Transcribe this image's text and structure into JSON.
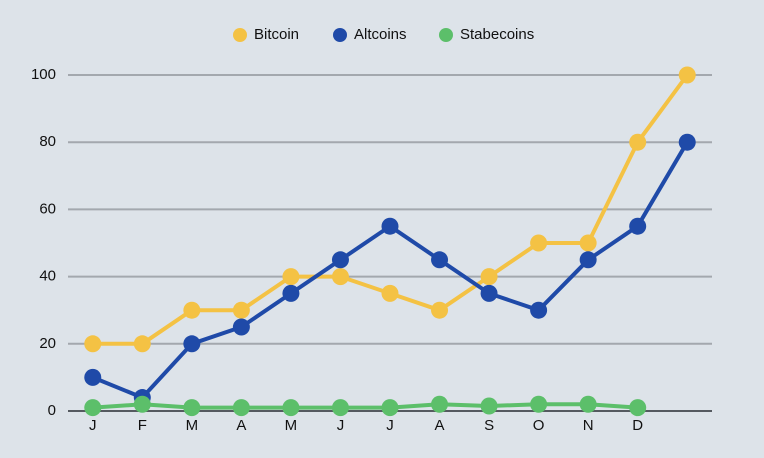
{
  "chart_data": {
    "type": "line",
    "categories": [
      "J",
      "F",
      "M",
      "A",
      "M",
      "J",
      "J",
      "A",
      "S",
      "O",
      "N",
      "D",
      null
    ],
    "series": [
      {
        "name": "Bitcoin",
        "color": "#f4c244",
        "values": [
          20,
          20,
          30,
          30,
          40,
          40,
          35,
          30,
          40,
          50,
          50,
          80,
          100
        ]
      },
      {
        "name": "Altcoins",
        "color": "#1f4aa8",
        "values": [
          10,
          4,
          20,
          25,
          35,
          45,
          55,
          45,
          35,
          30,
          45,
          55,
          80
        ]
      },
      {
        "name": "Stabecoins",
        "color": "#5cbf6a",
        "values": [
          1,
          2,
          1,
          1,
          1,
          1,
          1,
          2,
          1.5,
          2,
          2,
          1,
          null
        ]
      }
    ],
    "ylim": [
      0,
      100
    ],
    "yticks": [
      0,
      20,
      40,
      60,
      80,
      100
    ],
    "grid": true,
    "legend": "top"
  }
}
